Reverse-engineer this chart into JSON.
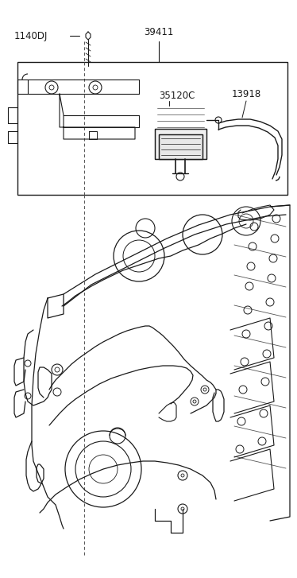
{
  "bg": "#ffffff",
  "lc": "#1a1a1a",
  "lc2": "#333333",
  "lw_main": 0.9,
  "lw_thin": 0.6,
  "lw_thick": 1.1,
  "label_1140DJ": "1140DJ",
  "label_39411": "39411",
  "label_35120C": "35120C",
  "label_13918": "13918",
  "fs": 8.5
}
